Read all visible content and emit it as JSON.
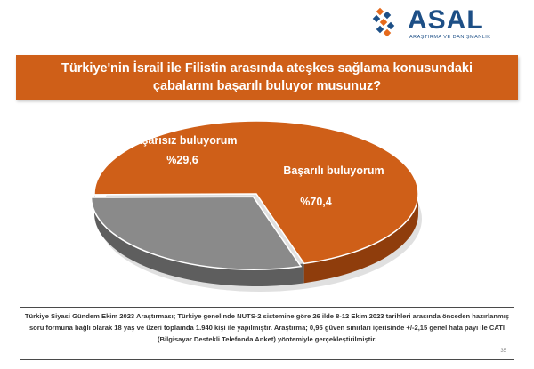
{
  "brand": {
    "name": "ASAL",
    "tagline": "ARAŞTIRMA VE DANIŞMANLIK"
  },
  "chart_data": {
    "type": "pie",
    "title": "Türkiye'nin İsrail ile Filistin arasında ateşkes sağlama konusundaki çabalarını başarılı buluyor musunuz?",
    "slices": [
      {
        "label": "Başarılı buluyorum",
        "value": 70.4,
        "value_label": "%70,4",
        "color": "#cf5f18",
        "side_color": "#8f3d0c"
      },
      {
        "label": "Başarısız buluyorum",
        "value": 29.6,
        "value_label": "%29,6",
        "color": "#8a8a8a",
        "side_color": "#5e5e5e"
      }
    ]
  },
  "footer": {
    "text": "Türkiye Siyasi Gündem Ekim 2023 Araştırması; Türkiye genelinde NUTS-2 sistemine göre 26 ilde 8-12 Ekim 2023 tarihleri arasında önceden hazırlanmış soru formuna bağlı olarak 18 yaş ve üzeri toplamda 1.940 kişi ile yapılmıştır. Araştırma; 0,95 güven sınırları içerisinde +/-2,15 genel hata payı ile CATI (Bilgisayar Destekli Telefonda Anket) yöntemiyle gerçekleştirilmiştir.",
    "page_number": "35"
  }
}
